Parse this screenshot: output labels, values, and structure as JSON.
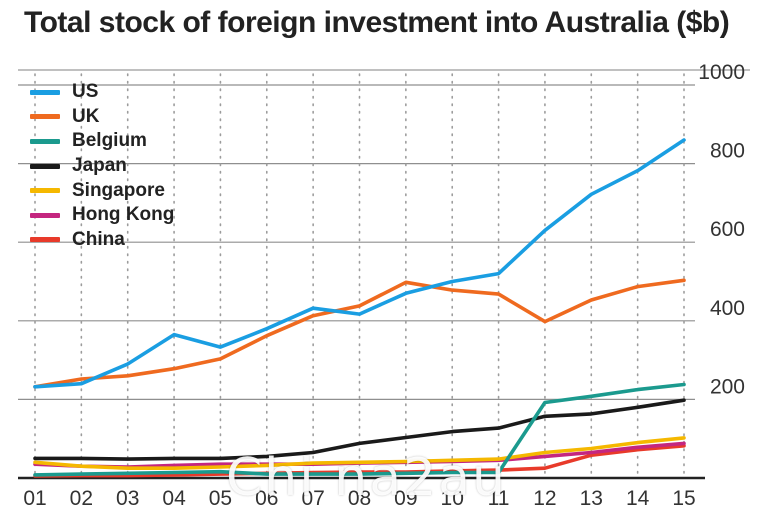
{
  "chart_data": {
    "type": "line",
    "title": "Total stock of foreign investment into Australia ($b)",
    "xlabel": "",
    "ylabel": "",
    "categories": [
      "01",
      "02",
      "03",
      "04",
      "05",
      "06",
      "07",
      "08",
      "09",
      "10",
      "11",
      "12",
      "13",
      "14",
      "15"
    ],
    "ylim": [
      0,
      1000
    ],
    "yticks": [
      200,
      400,
      600,
      800,
      1000
    ],
    "grid": true,
    "legend_position": "top-left",
    "series": [
      {
        "name": "US",
        "color": "#1a9ee2",
        "values": [
          232,
          240,
          290,
          365,
          333,
          380,
          432,
          417,
          470,
          500,
          520,
          630,
          722,
          782,
          860
        ]
      },
      {
        "name": "UK",
        "color": "#ef6a1f",
        "values": [
          232,
          252,
          260,
          278,
          303,
          362,
          413,
          438,
          498,
          478,
          468,
          398,
          453,
          487,
          503
        ]
      },
      {
        "name": "Belgium",
        "color": "#1b9a8e",
        "values": [
          8,
          10,
          12,
          14,
          16,
          10,
          10,
          10,
          12,
          14,
          14,
          192,
          208,
          225,
          238
        ]
      },
      {
        "name": "Japan",
        "color": "#1a1a1a",
        "values": [
          50,
          50,
          48,
          50,
          50,
          55,
          65,
          88,
          103,
          118,
          127,
          157,
          163,
          180,
          198
        ]
      },
      {
        "name": "Singapore",
        "color": "#f5b800",
        "values": [
          40,
          30,
          25,
          25,
          28,
          32,
          38,
          40,
          42,
          45,
          48,
          65,
          75,
          90,
          102
        ]
      },
      {
        "name": "Hong Kong",
        "color": "#c4267f",
        "values": [
          35,
          30,
          28,
          32,
          35,
          35,
          35,
          38,
          40,
          42,
          45,
          55,
          65,
          78,
          88
        ]
      },
      {
        "name": "China",
        "color": "#e83a2a",
        "values": [
          5,
          6,
          6,
          8,
          10,
          12,
          14,
          15,
          15,
          18,
          20,
          25,
          58,
          72,
          82
        ]
      }
    ]
  },
  "watermark": "Chi na2au"
}
